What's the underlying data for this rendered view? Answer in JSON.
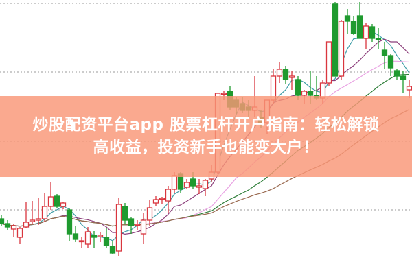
{
  "banner": {
    "line1": "炒股配资平台app 股票杠杆开户指南：轻松解锁",
    "line2": "高收益，投资新手也能变大户！",
    "color": "#f99676"
  },
  "chart_data": {
    "type": "candlestick",
    "title": "",
    "grid": {
      "style": "dotted",
      "levels": [
        396,
        296,
        195,
        95
      ]
    },
    "up_color": "#d9363e",
    "down_color": "#1f9a2f",
    "ylim": [
      0,
      401
    ],
    "ohlc": [
      [
        82,
        88,
        72,
        75
      ],
      [
        75,
        80,
        65,
        70
      ],
      [
        67,
        75,
        55,
        72
      ],
      [
        55,
        70,
        45,
        68
      ],
      [
        70,
        107,
        68,
        77
      ],
      [
        78,
        108,
        75,
        80
      ],
      [
        80,
        112,
        73,
        82
      ],
      [
        82,
        120,
        78,
        100
      ],
      [
        100,
        135,
        95,
        114
      ],
      [
        115,
        118,
        98,
        100
      ],
      [
        100,
        106,
        96,
        105
      ],
      [
        95,
        98,
        50,
        60
      ],
      [
        60,
        72,
        48,
        52
      ],
      [
        50,
        55,
        40,
        50
      ],
      [
        45,
        70,
        40,
        63
      ],
      [
        58,
        64,
        40,
        55
      ],
      [
        56,
        62,
        48,
        58
      ],
      [
        55,
        68,
        40,
        43
      ],
      [
        42,
        50,
        30,
        32
      ],
      [
        35,
        113,
        28,
        103
      ],
      [
        100,
        105,
        75,
        80
      ],
      [
        82,
        85,
        60,
        72
      ],
      [
        74,
        80,
        65,
        74
      ],
      [
        60,
        90,
        45,
        80
      ],
      [
        80,
        110,
        72,
        98
      ],
      [
        105,
        115,
        100,
        110
      ],
      [
        112,
        114,
        104,
        112
      ],
      [
        108,
        130,
        90,
        125
      ],
      [
        125,
        150,
        120,
        145
      ],
      [
        148,
        150,
        120,
        125
      ],
      [
        128,
        140,
        125,
        135
      ],
      [
        140,
        150,
        125,
        130
      ],
      [
        128,
        140,
        118,
        130
      ],
      [
        126,
        140,
        115,
        138
      ],
      [
        140,
        160,
        135,
        150
      ],
      [
        150,
        265,
        148,
        265
      ],
      [
        265,
        268,
        255,
        265
      ],
      [
        268,
        275,
        240,
        245
      ],
      [
        255,
        260,
        235,
        245
      ],
      [
        250,
        260,
        236,
        240
      ],
      [
        245,
        255,
        230,
        240
      ],
      [
        240,
        290,
        230,
        245
      ],
      [
        230,
        240,
        215,
        220
      ],
      [
        222,
        255,
        205,
        255
      ],
      [
        255,
        300,
        250,
        290
      ],
      [
        290,
        310,
        280,
        300
      ],
      [
        300,
        305,
        278,
        285
      ],
      [
        288,
        298,
        270,
        290
      ],
      [
        285,
        290,
        255,
        262
      ],
      [
        262,
        270,
        250,
        268
      ],
      [
        268,
        298,
        250,
        262
      ],
      [
        262,
        290,
        255,
        258
      ],
      [
        258,
        285,
        250,
        280
      ],
      [
        280,
        340,
        275,
        340
      ],
      [
        395,
        398,
        290,
        290
      ],
      [
        290,
        372,
        285,
        370
      ],
      [
        378,
        388,
        352,
        370
      ],
      [
        370,
        378,
        350,
        352
      ],
      [
        378,
        398,
        345,
        345
      ],
      [
        345,
        367,
        330,
        363
      ],
      [
        362,
        366,
        340,
        345
      ],
      [
        345,
        360,
        330,
        343
      ],
      [
        328,
        340,
        300,
        320
      ],
      [
        320,
        322,
        290,
        302
      ],
      [
        298,
        300,
        285,
        290
      ],
      [
        290,
        298,
        265,
        285
      ],
      [
        270,
        285,
        258,
        275
      ]
    ],
    "moving_averages": [
      {
        "period": 5,
        "color": "#3f9ea8"
      },
      {
        "period": 10,
        "color": "#8b3d7a"
      },
      {
        "period": 20,
        "color": "#e9a3e3"
      },
      {
        "period": 30,
        "color": "#2f7f3a"
      },
      {
        "period": 45,
        "color": "#9a6a50"
      }
    ]
  }
}
